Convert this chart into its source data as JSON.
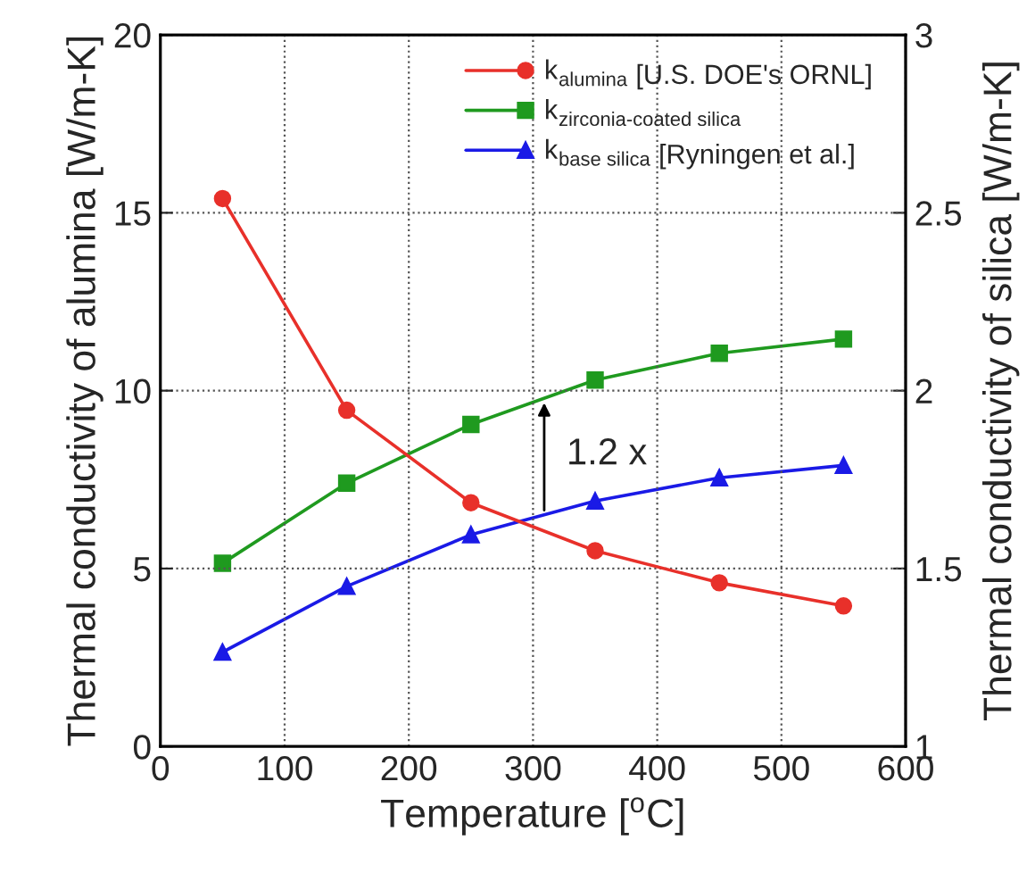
{
  "chart_data": {
    "type": "line",
    "xlabel": "Temperature [$^{o}$C]",
    "ylabel": "Thermal conductivity of alumina [W/m-K]",
    "y2label": "Thermal conductivity of silica [W/m-K]",
    "x": [
      50,
      150,
      250,
      350,
      450,
      550
    ],
    "series": [
      {
        "name": "k$_{alumina}$ [U.S. DOE's ORNL]",
        "color": "#e8302a",
        "marker": "circle",
        "values": [
          15.4,
          9.45,
          6.85,
          5.5,
          4.6,
          3.95
        ]
      },
      {
        "name": "k$_{zirconia-coated silica}$",
        "color": "#1f9a1f",
        "marker": "square",
        "axis": "y2",
        "values": [
          1.515,
          1.74,
          1.905,
          2.03,
          2.105,
          2.145
        ]
      },
      {
        "name": "k$_{base silica}$ [Ryningen et al.]",
        "color": "#1a1ae6",
        "marker": "triangle",
        "axis": "y2",
        "values": [
          1.265,
          1.45,
          1.595,
          1.69,
          1.755,
          1.79
        ]
      }
    ],
    "xlim": [
      0,
      600
    ],
    "xticks": [
      0,
      100,
      200,
      300,
      400,
      500,
      600
    ],
    "ylim": [
      0,
      20
    ],
    "yticks": [
      0,
      5,
      10,
      15,
      20
    ],
    "y2lim": [
      1,
      3
    ],
    "y2ticks": [
      1,
      1.5,
      2,
      2.5,
      3
    ],
    "annotations": [
      "1.2 x"
    ],
    "grid": true,
    "legend": "top right",
    "line_style": "solid"
  }
}
